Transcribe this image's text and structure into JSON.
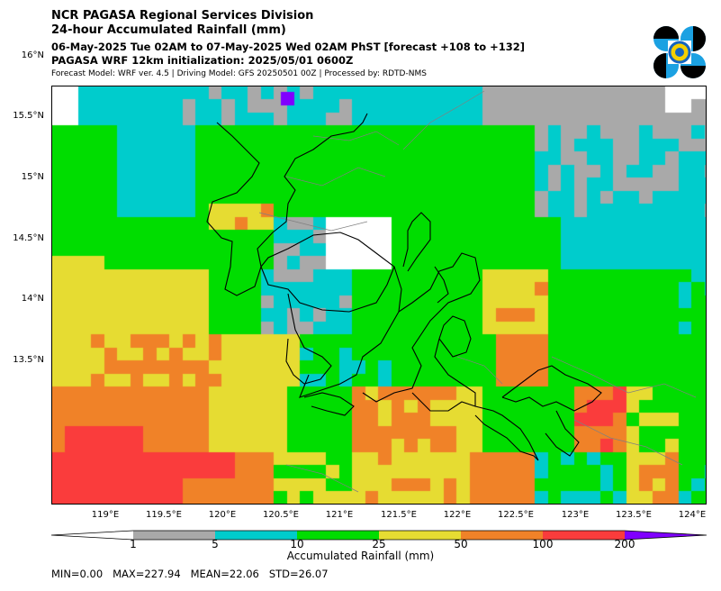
{
  "header": {
    "title": "NCR PAGASA Regional Services Division",
    "subtitle": "24-hour Accumulated Rainfall (mm)",
    "period": "06-May-2025 Tue 02AM to 07-May-2025 Wed 02AM PhST [forecast +108 to +132]",
    "init": "PAGASA WRF 12km initialization: 2025/05/01 0600Z",
    "model_line": "Forecast Model: WRF ver. 4.5 | Driving Model: GFS 20250501 00Z | Processed by: RDTD-NMS"
  },
  "map": {
    "lat_ticks": [
      "16°N",
      "15.5°N",
      "15°N",
      "14.5°N",
      "14°N",
      "13.5°N"
    ],
    "lon_ticks": [
      "119°E",
      "119.5°E",
      "120°E",
      "120.5°E",
      "121°E",
      "121.5°E",
      "122°E",
      "122.5°E",
      "123°E",
      "123.5°E",
      "124°E"
    ],
    "coastline_color": "#000000",
    "boundary_color": "#808080"
  },
  "colorbar": {
    "levels": [
      "1",
      "5",
      "10",
      "25",
      "50",
      "100",
      "200"
    ],
    "colors": [
      "#ffffff",
      "#a9a9a9",
      "#00cccc",
      "#00dd00",
      "#e6dc32",
      "#f08228",
      "#fa3c3c",
      "#8000ff"
    ],
    "title": "Accumulated Rainfall (mm)"
  },
  "stats": {
    "line": "MIN=0.00   MAX=227.94   MEAN=22.06   STD=26.07"
  },
  "chart_data": {
    "type": "heatmap",
    "title": "24-hour Accumulated Rainfall (mm)",
    "xlabel": "",
    "ylabel": "",
    "lon_range": [
      118.6,
      124.1
    ],
    "lat_range": [
      13.0,
      16.5
    ],
    "bins_mm": [
      1,
      5,
      10,
      25,
      50,
      100,
      200
    ],
    "min": 0.0,
    "max": 227.94,
    "mean": 22.06,
    "std": 26.07
  }
}
